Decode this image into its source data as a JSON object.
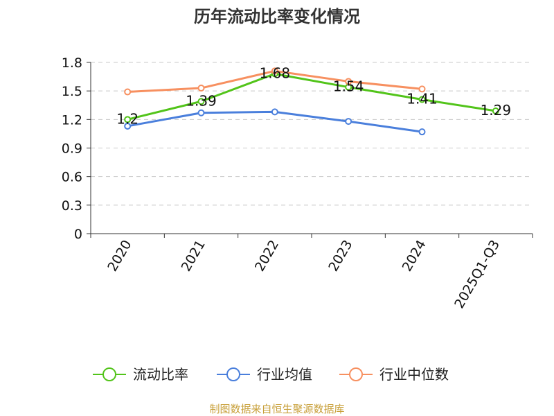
{
  "chart_data": {
    "type": "line",
    "title": "历年流动比率变化情况",
    "categories": [
      "2020",
      "2021",
      "2022",
      "2023",
      "2024",
      "2025Q1-Q3"
    ],
    "ylim": [
      0,
      1.8
    ],
    "yticks": [
      "0",
      "0.3",
      "0.6",
      "0.9",
      "1.2",
      "1.5",
      "1.8"
    ],
    "grid": true,
    "legend_position": "bottom",
    "series": [
      {
        "name": "流动比率",
        "color": "#52c41a",
        "show_labels": true,
        "values": [
          1.2,
          1.39,
          1.68,
          1.54,
          1.41,
          1.29
        ],
        "labels": [
          "1.2",
          "1.39",
          "1.68",
          "1.54",
          "1.41",
          "1.29"
        ]
      },
      {
        "name": "行业均值",
        "color": "#4a7fdc",
        "show_labels": false,
        "values": [
          1.13,
          1.27,
          1.28,
          1.18,
          1.07,
          null
        ]
      },
      {
        "name": "行业中位数",
        "color": "#f79060",
        "show_labels": false,
        "values": [
          1.49,
          1.53,
          1.71,
          1.6,
          1.52,
          null
        ]
      }
    ]
  },
  "source": "制图数据来自恒生聚源数据库"
}
